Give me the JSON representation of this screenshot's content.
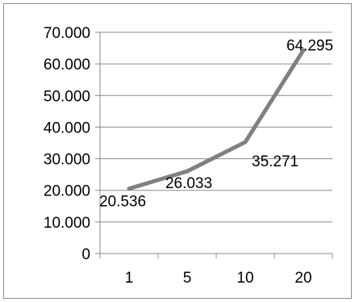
{
  "chart_data": {
    "type": "line",
    "categories": [
      "1",
      "5",
      "10",
      "20"
    ],
    "series": [
      {
        "values": [
          20.536,
          26.033,
          35.271,
          64.295
        ],
        "data_labels": [
          "20.536",
          "26.033",
          "35.271",
          "64.295"
        ],
        "color": "#808080"
      }
    ],
    "y_ticks": [
      "0",
      "10.000",
      "20.000",
      "30.000",
      "40.000",
      "50.000",
      "60.000",
      "70.000"
    ],
    "ylim": [
      0,
      70
    ],
    "grid": "horizontal",
    "legend": "none",
    "title": "",
    "xlabel": "",
    "ylabel": ""
  }
}
